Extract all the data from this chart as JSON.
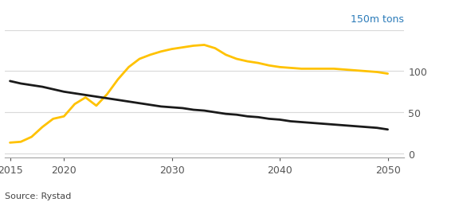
{
  "yellow_x": [
    2015,
    2016,
    2017,
    2018,
    2019,
    2020,
    2021,
    2022,
    2023,
    2024,
    2025,
    2026,
    2027,
    2028,
    2029,
    2030,
    2031,
    2032,
    2033,
    2034,
    2035,
    2036,
    2037,
    2038,
    2039,
    2040,
    2041,
    2042,
    2043,
    2044,
    2045,
    2046,
    2047,
    2048,
    2049,
    2050
  ],
  "yellow_y": [
    13,
    14,
    20,
    32,
    42,
    45,
    60,
    68,
    58,
    72,
    90,
    105,
    115,
    120,
    124,
    127,
    129,
    131,
    132,
    128,
    120,
    115,
    112,
    110,
    107,
    105,
    104,
    103,
    103,
    103,
    103,
    102,
    101,
    100,
    99,
    97
  ],
  "black_x": [
    2015,
    2016,
    2017,
    2018,
    2019,
    2020,
    2021,
    2022,
    2023,
    2024,
    2025,
    2026,
    2027,
    2028,
    2029,
    2030,
    2031,
    2032,
    2033,
    2034,
    2035,
    2036,
    2037,
    2038,
    2039,
    2040,
    2041,
    2042,
    2043,
    2044,
    2045,
    2046,
    2047,
    2048,
    2049,
    2050
  ],
  "black_y": [
    88,
    85,
    83,
    81,
    78,
    75,
    73,
    71,
    69,
    67,
    65,
    63,
    61,
    59,
    57,
    56,
    55,
    53,
    52,
    50,
    48,
    47,
    45,
    44,
    42,
    41,
    39,
    38,
    37,
    36,
    35,
    34,
    33,
    32,
    31,
    29
  ],
  "yellow_color": "#FFC200",
  "black_color": "#1a1a1a",
  "ylabel_right": "150m tons",
  "ylabel_color": "#2b7bb9",
  "ytick_labels": [
    "0",
    "50",
    "100",
    ""
  ],
  "ytick_values": [
    0,
    50,
    100,
    150
  ],
  "xticks": [
    2015,
    2020,
    2030,
    2040,
    2050
  ],
  "xlim": [
    2014.5,
    2051.5
  ],
  "ylim": [
    -5,
    158
  ],
  "source_text": "Source: Rystad",
  "background_color": "#ffffff",
  "grid_color": "#d9d9d9",
  "label_fontsize": 9,
  "source_fontsize": 8,
  "tick_color": "#555555",
  "line_width": 2.0
}
